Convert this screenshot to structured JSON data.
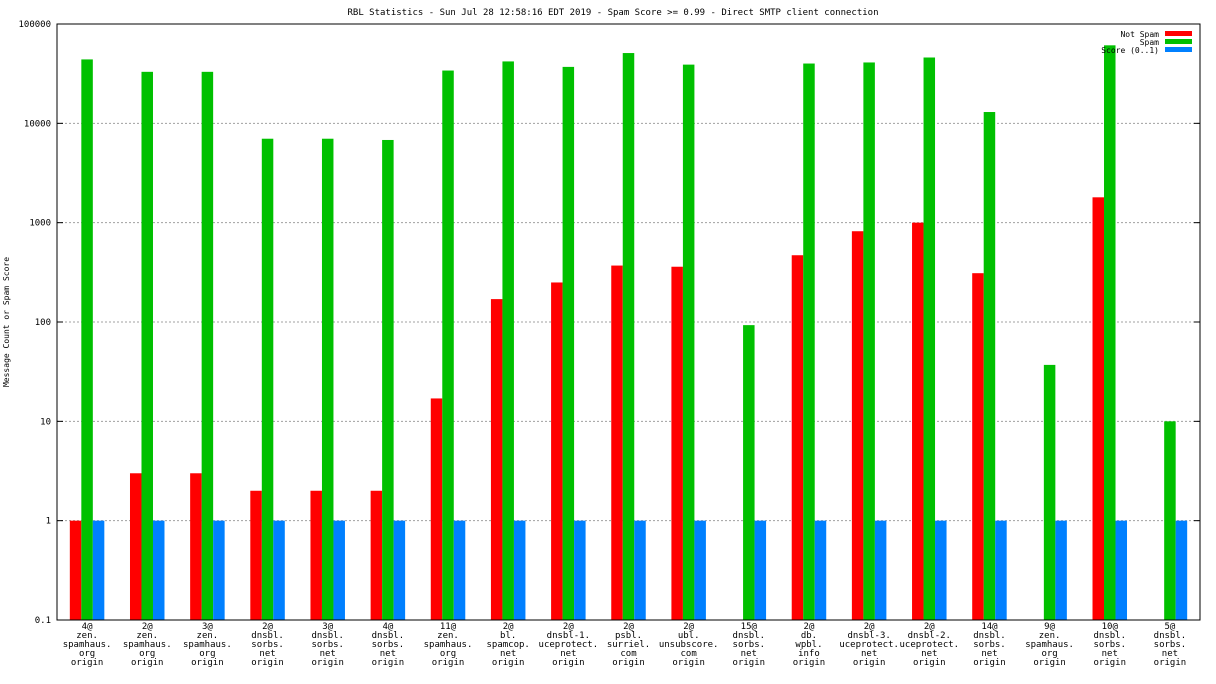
{
  "chart_data": {
    "type": "bar",
    "title": "RBL Statistics - Sun Jul 28 12:58:16 EDT 2019 - Spam Score >= 0.99 - Direct SMTP client connection",
    "xlabel": "",
    "ylabel": "Message Count or Spam Score",
    "yscale": "log",
    "ylim": [
      0.1,
      100000
    ],
    "yticks": [
      {
        "value": 0.1,
        "label": "0.1"
      },
      {
        "value": 1,
        "label": "1"
      },
      {
        "value": 10,
        "label": "10"
      },
      {
        "value": 100,
        "label": "100"
      },
      {
        "value": 1000,
        "label": "1000"
      },
      {
        "value": 10000,
        "label": "10000"
      },
      {
        "value": 100000,
        "label": "100000"
      }
    ],
    "grid": true,
    "legend_position": "top-right",
    "categories": [
      [
        "4@",
        "zen.",
        "spamhaus.",
        "org",
        "origin"
      ],
      [
        "2@",
        "zen.",
        "spamhaus.",
        "org",
        "origin"
      ],
      [
        "3@",
        "zen.",
        "spamhaus.",
        "org",
        "origin"
      ],
      [
        "2@",
        "dnsbl.",
        "sorbs.",
        "net",
        "origin"
      ],
      [
        "3@",
        "dnsbl.",
        "sorbs.",
        "net",
        "origin"
      ],
      [
        "4@",
        "dnsbl.",
        "sorbs.",
        "net",
        "origin"
      ],
      [
        "11@",
        "zen.",
        "spamhaus.",
        "org",
        "origin"
      ],
      [
        "2@",
        "bl.",
        "spamcop.",
        "net",
        "origin"
      ],
      [
        "2@",
        "dnsbl-1.",
        "uceprotect.",
        "net",
        "origin"
      ],
      [
        "2@",
        "psbl.",
        "surriel.",
        "com",
        "origin"
      ],
      [
        "2@",
        "ubl.",
        "unsubscore.",
        "com",
        "origin"
      ],
      [
        "15@",
        "dnsbl.",
        "sorbs.",
        "net",
        "origin"
      ],
      [
        "2@",
        "db.",
        "wpbl.",
        "info",
        "origin"
      ],
      [
        "2@",
        "dnsbl-3.",
        "uceprotect.",
        "net",
        "origin"
      ],
      [
        "2@",
        "dnsbl-2.",
        "uceprotect.",
        "net",
        "origin"
      ],
      [
        "14@",
        "dnsbl.",
        "sorbs.",
        "net",
        "origin"
      ],
      [
        "9@",
        "zen.",
        "spamhaus.",
        "org",
        "origin"
      ],
      [
        "10@",
        "dnsbl.",
        "sorbs.",
        "net",
        "origin"
      ],
      [
        "5@",
        "dnsbl.",
        "sorbs.",
        "net",
        "origin"
      ]
    ],
    "series": [
      {
        "name": "Not Spam",
        "color": "#ff0000",
        "values": [
          1,
          3,
          3,
          2,
          2,
          2,
          17,
          170,
          250,
          370,
          360,
          null,
          470,
          820,
          1000,
          310,
          null,
          1800,
          null
        ]
      },
      {
        "name": "Spam",
        "color": "#00c000",
        "values": [
          44000,
          33000,
          33000,
          7000,
          7000,
          6800,
          34000,
          42000,
          37000,
          51000,
          39000,
          93,
          40000,
          41000,
          46000,
          13000,
          37,
          61000,
          10
        ]
      },
      {
        "name": "Score (0..1)",
        "color": "#0080ff",
        "values": [
          1,
          1,
          1,
          1,
          1,
          1,
          1,
          1,
          1,
          1,
          1,
          1,
          1,
          1,
          1,
          1,
          1,
          1,
          1
        ]
      }
    ]
  }
}
